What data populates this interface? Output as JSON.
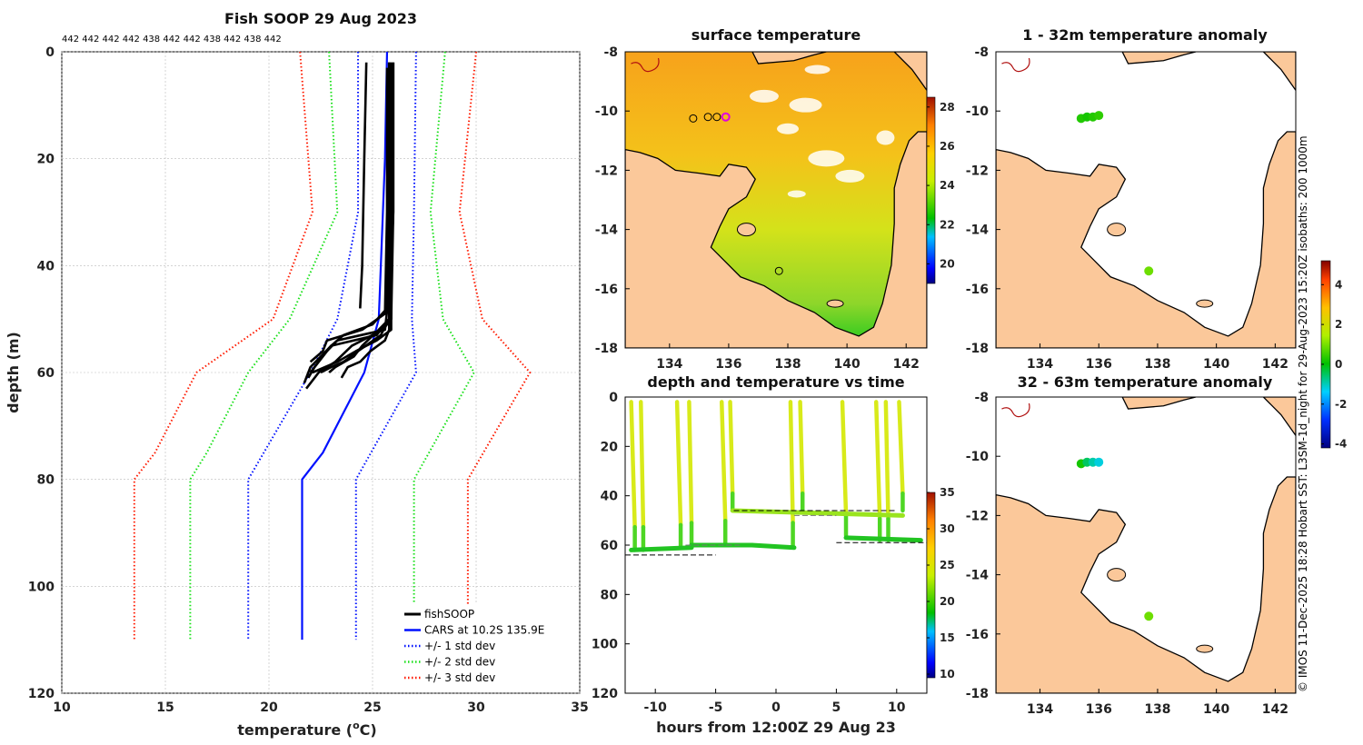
{
  "figure": {
    "side_note": "© IMOS 11-Dec-2025 18:28 Hobart SST: L3SM-1d_night for 29-Aug-2023 15:20Z isobaths: 200  1000m"
  },
  "colors": {
    "sea_orange": "#f7a21b",
    "land": "#fbc89a",
    "fishsoop": "#000000",
    "cars": "#0010ff",
    "std1": "#0010ff",
    "std2": "#18e018",
    "std3": "#ff1a00"
  },
  "chart_data": [
    {
      "id": "profile",
      "type": "line",
      "title": "Fish SOOP 29 Aug 2023",
      "top_labels": [
        "442",
        "442",
        "442",
        "442",
        "438",
        "442",
        "442",
        "438",
        "442",
        "438",
        "442"
      ],
      "xlabel": "temperature (",
      "xlabel_unit_sup": "o",
      "xlabel_unit": "C)",
      "ylabel": "depth (m)",
      "xlim": [
        10,
        35
      ],
      "ylim": [
        0,
        120
      ],
      "x_ticks": [
        "10",
        "15",
        "20",
        "25",
        "30",
        "35"
      ],
      "y_ticks": [
        "0",
        "20",
        "40",
        "60",
        "80",
        "100",
        "120"
      ],
      "legend": [
        "fishSOOP",
        "CARS at 10.2S 135.9E",
        "+/- 1 std dev",
        "+/- 2 std dev",
        "+/- 3 std dev"
      ],
      "series": [
        {
          "name": "CARS at 10.2S 135.9E",
          "depth": [
            0,
            20,
            40,
            50,
            60,
            75,
            80,
            110
          ],
          "temp": [
            25.7,
            25.6,
            25.4,
            25.3,
            24.6,
            22.6,
            21.6,
            21.6
          ]
        },
        {
          "name": "-1 std",
          "depth": [
            0,
            30,
            50,
            60,
            80,
            110
          ],
          "temp": [
            24.3,
            24.3,
            23.3,
            22.0,
            19.0,
            19.0
          ]
        },
        {
          "name": "+1 std",
          "depth": [
            0,
            30,
            50,
            60,
            80,
            110
          ],
          "temp": [
            27.1,
            27.0,
            26.9,
            27.1,
            24.2,
            24.2
          ]
        },
        {
          "name": "-2 std",
          "depth": [
            0,
            30,
            50,
            60,
            75,
            80,
            110
          ],
          "temp": [
            22.9,
            23.3,
            21.0,
            19.0,
            17.0,
            16.2,
            16.2
          ]
        },
        {
          "name": "+2 std",
          "depth": [
            0,
            30,
            50,
            60,
            80,
            110
          ],
          "temp": [
            28.5,
            27.8,
            28.4,
            29.9,
            27.0,
            27.0
          ]
        },
        {
          "name": "-3 std",
          "depth": [
            0,
            30,
            50,
            60,
            75,
            80,
            110
          ],
          "temp": [
            21.5,
            22.1,
            20.2,
            16.5,
            14.5,
            13.5,
            13.5
          ]
        },
        {
          "name": "+3 std",
          "depth": [
            0,
            30,
            50,
            60,
            80,
            110
          ],
          "temp": [
            30.0,
            29.2,
            30.3,
            32.6,
            29.6,
            29.6
          ]
        }
      ],
      "casts": [
        {
          "depth": [
            2,
            20,
            40,
            48
          ],
          "temp": [
            24.7,
            24.6,
            24.5,
            24.4
          ]
        },
        {
          "depth": [
            2,
            20,
            45,
            52,
            54,
            56,
            58,
            60
          ],
          "temp": [
            25.8,
            25.8,
            25.8,
            25.6,
            23.3,
            22.8,
            22.4,
            22.0
          ]
        },
        {
          "depth": [
            2,
            25,
            50,
            53,
            55,
            57,
            59,
            62
          ],
          "temp": [
            25.9,
            25.9,
            25.8,
            25.2,
            23.0,
            22.5,
            22.0,
            21.7
          ]
        },
        {
          "depth": [
            3,
            30,
            49,
            52,
            54,
            56,
            57,
            58
          ],
          "temp": [
            25.7,
            25.7,
            25.6,
            24.5,
            22.8,
            22.6,
            22.3,
            22.0
          ]
        },
        {
          "depth": [
            2,
            22,
            48,
            51,
            53,
            55,
            59,
            61
          ],
          "temp": [
            25.8,
            25.8,
            25.7,
            25.0,
            23.6,
            23.0,
            22.2,
            21.9
          ]
        },
        {
          "depth": [
            2,
            30,
            50,
            52,
            55,
            58,
            60,
            63
          ],
          "temp": [
            26.0,
            26.0,
            25.9,
            25.5,
            24.0,
            23.2,
            22.4,
            21.8
          ]
        },
        {
          "depth": [
            2,
            25,
            52,
            54,
            56,
            58,
            59,
            60
          ],
          "temp": [
            25.9,
            25.9,
            25.9,
            25.2,
            24.2,
            23.3,
            22.7,
            22.1
          ]
        },
        {
          "depth": [
            2,
            30,
            50,
            53,
            56,
            58,
            59,
            60
          ],
          "temp": [
            25.8,
            25.8,
            25.8,
            25.4,
            24.3,
            23.6,
            23.0,
            22.5
          ]
        },
        {
          "depth": [
            3,
            25,
            52,
            54,
            56,
            58,
            59,
            61
          ],
          "temp": [
            25.9,
            25.9,
            25.8,
            25.6,
            24.9,
            24.4,
            23.8,
            23.5
          ]
        },
        {
          "depth": [
            2,
            30,
            50,
            52,
            55,
            57,
            59,
            60
          ],
          "temp": [
            26.0,
            26.0,
            25.8,
            25.3,
            24.5,
            24.1,
            23.2,
            22.9
          ]
        }
      ]
    },
    {
      "id": "sst_map",
      "type": "heatmap",
      "title": "surface temperature",
      "xlim": [
        132.5,
        142.7
      ],
      "ylim": [
        -18,
        -8
      ],
      "x_ticks": [
        "134",
        "136",
        "138",
        "140",
        "142"
      ],
      "y_ticks": [
        "-8",
        "-10",
        "-12",
        "-14",
        "-16",
        "-18"
      ],
      "colorbar": {
        "min": 19,
        "max": 28.5,
        "ticks": [
          "20",
          "22",
          "24",
          "26",
          "28"
        ]
      },
      "markers": [
        {
          "lon": 134.8,
          "lat": -10.25,
          "color": "black"
        },
        {
          "lon": 135.3,
          "lat": -10.2,
          "color": "black"
        },
        {
          "lon": 135.6,
          "lat": -10.2,
          "color": "black"
        },
        {
          "lon": 135.9,
          "lat": -10.2,
          "color": "magenta"
        },
        {
          "lon": 137.7,
          "lat": -15.4,
          "color": "black"
        }
      ]
    },
    {
      "id": "anom_1_32",
      "type": "scatter",
      "title": "1 - 32m temperature anomaly",
      "xlim": [
        132.5,
        142.7
      ],
      "ylim": [
        -18,
        -8
      ],
      "x_ticks": [
        "134",
        "136",
        "138",
        "140",
        "142"
      ],
      "y_ticks": [
        "-8",
        "-10",
        "-12",
        "-14",
        "-16",
        "-18"
      ],
      "points": [
        {
          "lon": 135.4,
          "lat": -10.25,
          "anom": 0.3
        },
        {
          "lon": 135.6,
          "lat": -10.2,
          "anom": 0.2
        },
        {
          "lon": 135.8,
          "lat": -10.2,
          "anom": 0.3
        },
        {
          "lon": 136.0,
          "lat": -10.15,
          "anom": 0.4
        },
        {
          "lon": 137.7,
          "lat": -15.4,
          "anom": 0.9
        }
      ]
    },
    {
      "id": "anom_32_63",
      "type": "scatter",
      "title": "32 - 63m temperature anomaly",
      "xlim": [
        132.5,
        142.7
      ],
      "ylim": [
        -18,
        -8
      ],
      "x_ticks": [
        "134",
        "136",
        "138",
        "140",
        "142"
      ],
      "y_ticks": [
        "-8",
        "-10",
        "-12",
        "-14",
        "-16",
        "-18"
      ],
      "colorbar": {
        "min": -4.2,
        "max": 5.2,
        "ticks": [
          "4",
          "2",
          "0",
          "-2",
          "-4"
        ]
      },
      "points": [
        {
          "lon": 135.4,
          "lat": -10.25,
          "anom": 0.2
        },
        {
          "lon": 135.6,
          "lat": -10.2,
          "anom": -0.5
        },
        {
          "lon": 135.8,
          "lat": -10.2,
          "anom": -0.9
        },
        {
          "lon": 136.0,
          "lat": -10.2,
          "anom": -1.2
        },
        {
          "lon": 137.7,
          "lat": -15.4,
          "anom": 0.9
        }
      ]
    },
    {
      "id": "time_depth",
      "type": "scatter",
      "title": "depth and temperature vs time",
      "xlabel": "hours from 12:00Z 29 Aug 23",
      "xlim": [
        -12.5,
        12.5
      ],
      "ylim": [
        0,
        120
      ],
      "x_ticks": [
        "-10",
        "-5",
        "0",
        "5",
        "10"
      ],
      "y_ticks": [
        "0",
        "20",
        "40",
        "60",
        "80",
        "100",
        "120"
      ],
      "colorbar": {
        "min": 9.5,
        "max": 35,
        "ticks": [
          "35",
          "30",
          "25",
          "20",
          "15",
          "10"
        ]
      },
      "segments": [
        {
          "t": [
            -12.0,
            -11.7
          ],
          "depth": [
            2,
            62
          ]
        },
        {
          "t": [
            -11.2,
            -11.0
          ],
          "depth": [
            2,
            62
          ]
        },
        {
          "t": [
            -8.2,
            -7.9
          ],
          "depth": [
            2,
            61
          ]
        },
        {
          "t": [
            -7.2,
            -7.0
          ],
          "depth": [
            2,
            60
          ]
        },
        {
          "t": [
            -4.5,
            -4.2
          ],
          "depth": [
            2,
            59
          ]
        },
        {
          "t": [
            -3.8,
            -3.6
          ],
          "depth": [
            2,
            46
          ]
        },
        {
          "t": [
            1.2,
            1.4
          ],
          "depth": [
            2,
            60
          ]
        },
        {
          "t": [
            2.0,
            2.2
          ],
          "depth": [
            2,
            46
          ]
        },
        {
          "t": [
            5.5,
            5.8
          ],
          "depth": [
            2,
            56
          ]
        },
        {
          "t": [
            8.3,
            8.6
          ],
          "depth": [
            2,
            58
          ]
        },
        {
          "t": [
            9.1,
            9.3
          ],
          "depth": [
            2,
            58
          ]
        },
        {
          "t": [
            10.2,
            10.5
          ],
          "depth": [
            2,
            46
          ]
        }
      ],
      "bottom_segments": [
        {
          "t": [
            -12.0,
            -7.0
          ],
          "depth": [
            62,
            61
          ]
        },
        {
          "t": [
            -7.0,
            -2.0
          ],
          "depth": [
            60,
            60
          ]
        },
        {
          "t": [
            -2.0,
            1.5
          ],
          "depth": [
            60,
            61
          ]
        },
        {
          "t": [
            -3.6,
            10.5
          ],
          "depth": [
            46,
            48
          ]
        },
        {
          "t": [
            5.8,
            12.0
          ],
          "depth": [
            57,
            58
          ]
        }
      ],
      "dashed_lines": [
        {
          "t": [
            -12.5,
            -5.0
          ],
          "depth": [
            64,
            64
          ],
          "color": "black"
        },
        {
          "t": [
            -7.5,
            -3.0
          ],
          "depth": [
            60,
            60
          ],
          "color": "gray"
        },
        {
          "t": [
            -3.5,
            10.0
          ],
          "depth": [
            46,
            46
          ],
          "color": "black"
        },
        {
          "t": [
            1.5,
            5.0
          ],
          "depth": [
            48,
            48
          ],
          "color": "gray"
        },
        {
          "t": [
            5.0,
            12.5
          ],
          "depth": [
            59,
            59
          ],
          "color": "black"
        }
      ]
    }
  ]
}
